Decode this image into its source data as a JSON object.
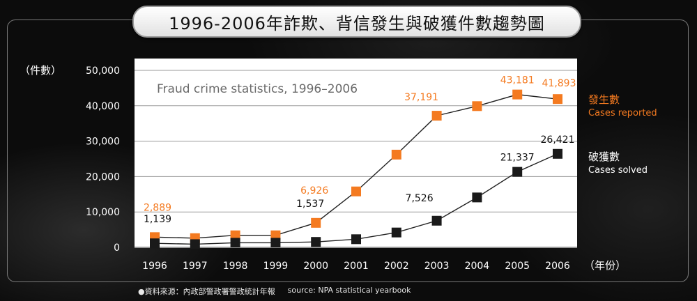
{
  "title": "1996-2006年詐欺、背信發生與破獲件數趨勢圖",
  "footer": {
    "source_zh": "●資料來源：內政部警政署警政統計年報",
    "source_en": "source: NPA statistical yearbook"
  },
  "chart_data": {
    "type": "line",
    "title": "Fraud crime statistics, 1996–2006",
    "ylabel": "（件數）",
    "xlabel": "（年份）",
    "ylim": [
      0,
      50000
    ],
    "yticks": [
      0,
      10000,
      20000,
      30000,
      40000,
      50000
    ],
    "ytick_labels": [
      "0",
      "10,000",
      "20,000",
      "30,000",
      "40,000",
      "50,000"
    ],
    "grid": true,
    "legend_position": "right",
    "x": [
      "1996",
      "1997",
      "1998",
      "1999",
      "2000",
      "2001",
      "2002",
      "2003",
      "2004",
      "2005",
      "2006"
    ],
    "series": [
      {
        "name": "發生數",
        "name_en": "Cases reported",
        "color": "#f47a20",
        "values": [
          2889,
          2600,
          3400,
          3400,
          6926,
          15800,
          26200,
          37191,
          39900,
          43181,
          41893
        ],
        "labels": {
          "0": "2,889",
          "4": "6,926",
          "7": "37,191",
          "9": "43,181",
          "10": "41,893"
        }
      },
      {
        "name": "破獲數",
        "name_en": "Cases solved",
        "color": "#1a1a1a",
        "values": [
          1139,
          900,
          1300,
          1300,
          1537,
          2300,
          4200,
          7526,
          14100,
          21337,
          26421
        ],
        "labels": {
          "0": "1,139",
          "4": "1,537",
          "7": "7,526",
          "9": "21,337",
          "10": "26,421"
        }
      }
    ]
  }
}
